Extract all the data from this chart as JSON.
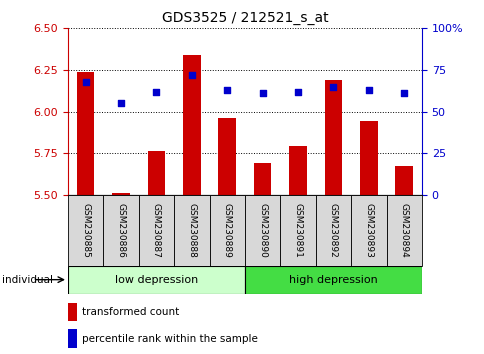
{
  "title": "GDS3525 / 212521_s_at",
  "samples": [
    "GSM230885",
    "GSM230886",
    "GSM230887",
    "GSM230888",
    "GSM230889",
    "GSM230890",
    "GSM230891",
    "GSM230892",
    "GSM230893",
    "GSM230894"
  ],
  "transformed_count": [
    6.24,
    5.51,
    5.76,
    6.34,
    5.96,
    5.69,
    5.79,
    6.19,
    5.94,
    5.67
  ],
  "percentile_rank": [
    68,
    55,
    62,
    72,
    63,
    61,
    62,
    65,
    63,
    61
  ],
  "ylim_left": [
    5.5,
    6.5
  ],
  "ylim_right": [
    0,
    100
  ],
  "yticks_left": [
    5.5,
    5.75,
    6.0,
    6.25,
    6.5
  ],
  "yticks_right": [
    0,
    25,
    50,
    75,
    100
  ],
  "bar_color": "#cc0000",
  "dot_color": "#0000cc",
  "group1_label": "low depression",
  "group2_label": "high depression",
  "group1_count": 5,
  "group2_count": 5,
  "group1_bg": "#ccffcc",
  "group2_bg": "#44dd44",
  "xlabel_left": "individual",
  "legend_red": "transformed count",
  "legend_blue": "percentile rank within the sample",
  "tick_label_color_left": "#cc0000",
  "tick_label_color_right": "#0000cc",
  "bar_width": 0.5,
  "baseline": 5.5,
  "label_box_color": "#d8d8d8",
  "title_fontsize": 10
}
